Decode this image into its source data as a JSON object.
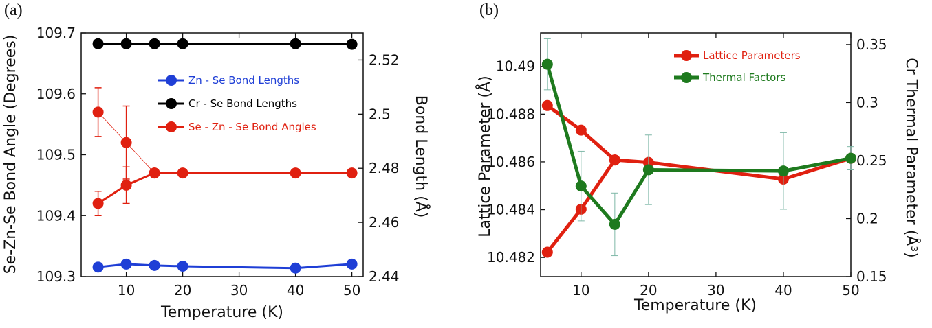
{
  "panels": [
    {
      "label": "(a)"
    },
    {
      "label": "(b)"
    }
  ],
  "chart_data": [
    {
      "type": "line",
      "panel": "(a)",
      "xlabel": "Temperature (K)",
      "ylabel_left": "Se-Zn-Se Bond Angle (Degrees)",
      "ylabel_right": "Bond Length (Å)",
      "xlim": [
        2,
        52
      ],
      "xticks": [
        10,
        20,
        30,
        40,
        50
      ],
      "ylim_left": [
        109.3,
        109.7
      ],
      "yticks_left": [
        "109.3",
        "109.4",
        "109.5",
        "109.6",
        "109.7"
      ],
      "ylim_right": [
        2.44,
        2.53
      ],
      "yticks_right": [
        "2.44",
        "2.46",
        "2.48",
        "2.5",
        "2.52"
      ],
      "series": [
        {
          "name": "Zn - Se Bond Lengths",
          "axis": "right",
          "color": "#1f3fd6",
          "x": [
            5,
            10,
            15,
            20,
            40,
            50
          ],
          "y": [
            2.4435,
            2.4446,
            2.4441,
            2.4438,
            2.4431,
            2.4446
          ]
        },
        {
          "name": "Cr - Se Bond Lengths",
          "axis": "right",
          "color": "#000000",
          "x": [
            5,
            10,
            15,
            20,
            40,
            50
          ],
          "y": [
            2.526,
            2.526,
            2.526,
            2.526,
            2.526,
            2.5258
          ]
        },
        {
          "name": "Se - Zn - Se Bond Angles",
          "axis": "left",
          "color": "#e02010",
          "x": [
            5,
            10,
            15,
            20,
            40,
            50
          ],
          "y": [
            109.42,
            109.45,
            109.47,
            109.47,
            109.47,
            109.47
          ],
          "yerr": [
            0.02,
            0.03,
            0,
            0,
            0,
            0
          ]
        },
        {
          "name": "",
          "axis": "left",
          "color": "#e02010",
          "thin": true,
          "x": [
            5,
            10,
            15
          ],
          "y": [
            109.57,
            109.52,
            109.47
          ],
          "yerr": [
            0.04,
            0.06,
            0
          ]
        }
      ]
    },
    {
      "type": "line",
      "panel": "(b)",
      "xlabel": "Temperature (K)",
      "ylabel_left": "Lattice Parameter (Å)",
      "ylabel_right": "Cr Thermal Parameter (Å³)",
      "xlim": [
        4,
        50
      ],
      "xticks": [
        10,
        20,
        30,
        40,
        50
      ],
      "ylim_left": [
        10.4812,
        10.4914
      ],
      "yticks_left": [
        "10.482",
        "10.484",
        "10.486",
        "10.488",
        "10.49"
      ],
      "ylim_right": [
        0.15,
        0.36
      ],
      "yticks_right": [
        "0.15",
        "0.2",
        "0.25",
        "0.3",
        "0.35"
      ],
      "series": [
        {
          "name": "Lattice Parameters",
          "axis": "left",
          "color": "#e02010",
          "x": [
            5,
            10,
            15,
            20,
            40,
            50
          ],
          "y": [
            10.48222,
            10.48402,
            10.48608,
            10.48598,
            10.48528,
            10.48615
          ]
        },
        {
          "name": "",
          "axis": "left",
          "color": "#e02010",
          "thick": true,
          "x": [
            5,
            10,
            15
          ],
          "y": [
            10.48836,
            10.48733,
            10.48608
          ]
        },
        {
          "name": "Thermal Factors",
          "axis": "right",
          "color": "#1e7a1e",
          "x": [
            5,
            10,
            15,
            20,
            40,
            50
          ],
          "y": [
            0.333,
            0.228,
            0.195,
            0.242,
            0.241,
            0.252
          ],
          "yerr": [
            0.022,
            0.03,
            0.027,
            0.03,
            0.033,
            0.01
          ]
        }
      ]
    }
  ]
}
